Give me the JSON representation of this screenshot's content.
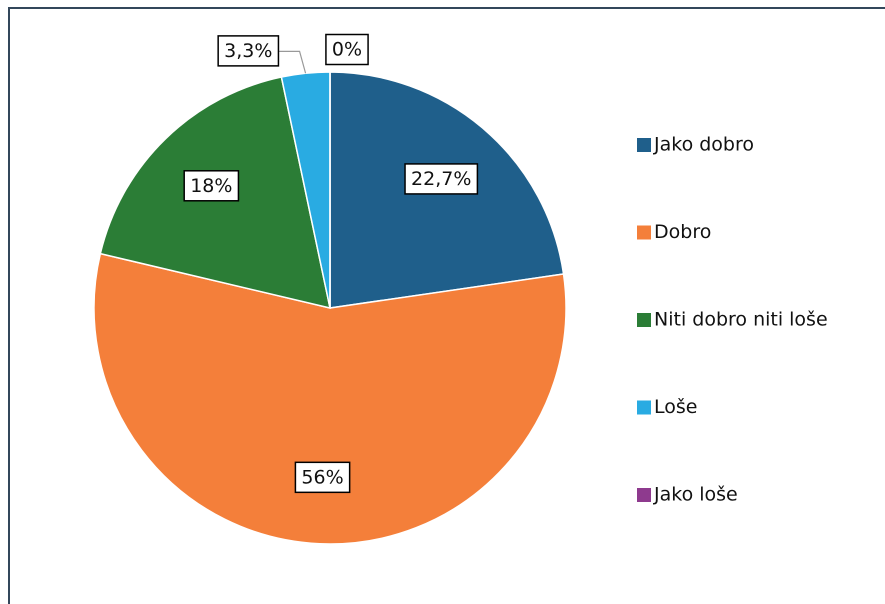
{
  "chart_data": {
    "type": "pie",
    "categories": [
      "Jako dobro",
      "Dobro",
      "Niti dobro niti loše",
      "Loše",
      "Jako loše"
    ],
    "values": [
      22.7,
      56,
      18,
      3.3,
      0
    ],
    "value_labels": [
      "22,7%",
      "56%",
      "18%",
      "3,3%",
      "0%"
    ],
    "colors": [
      "#1f5f8b",
      "#f47f3a",
      "#2b7d36",
      "#29abe2",
      "#8e3a8e"
    ],
    "legend": "right"
  }
}
